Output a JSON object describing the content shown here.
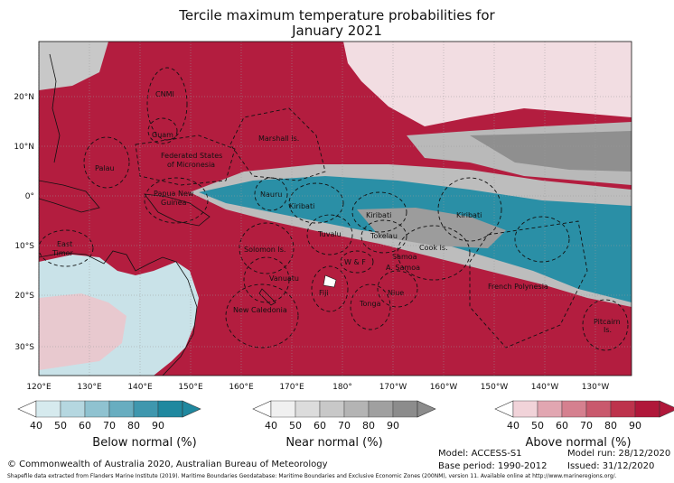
{
  "title": {
    "line1": "Tercile maximum temperature probabilities for",
    "line2": "January 2021"
  },
  "map": {
    "lon_ticks": [
      "120°E",
      "130°E",
      "140°E",
      "150°E",
      "160°E",
      "170°E",
      "180°",
      "170°W",
      "160°W",
      "150°W",
      "140°W",
      "130°W"
    ],
    "lat_ticks": [
      "20°N",
      "10°N",
      "0°",
      "10°S",
      "20°S",
      "30°S"
    ],
    "regions": [
      "CNMI",
      "Guam",
      "Marshall Is.",
      "Federated States",
      "of Micronesia",
      "Palau",
      "Papua New",
      "Guinea",
      "Nauru",
      "Kiribati",
      "Kiribati",
      "Kiribati",
      "Tuvalu",
      "Tokelau",
      "Solomon Is.",
      "East",
      "Timor",
      "Vanuatu",
      "Samoa",
      "W & F",
      "A. Samoa",
      "Cook Is.",
      "Fiji",
      "Niue",
      "Tonga",
      "New Caledonia",
      "French Polynesia",
      "Pitcairn",
      "Is."
    ]
  },
  "colorbars": [
    {
      "name": "below",
      "label": "Below normal (%)",
      "ticks": [
        "40",
        "50",
        "60",
        "70",
        "80",
        "90"
      ],
      "colors": [
        "#d6eaee",
        "#b5d7e0",
        "#8fc2d0",
        "#68adc0",
        "#3f97ae",
        "#1f889f"
      ]
    },
    {
      "name": "near",
      "label": "Near normal (%)",
      "ticks": [
        "40",
        "50",
        "60",
        "70",
        "80",
        "90"
      ],
      "colors": [
        "#f0f0f0",
        "#dcdcdc",
        "#c8c8c8",
        "#b4b4b4",
        "#a0a0a0",
        "#8c8c8c"
      ]
    },
    {
      "name": "above",
      "label": "Above normal (%)",
      "ticks": [
        "40",
        "50",
        "60",
        "70",
        "80",
        "90"
      ],
      "colors": [
        "#f1d3d9",
        "#e1a6b1",
        "#d5808f",
        "#c9596d",
        "#bd334c",
        "#b0173a"
      ]
    }
  ],
  "footer": {
    "copyright": "© Commonwealth of Australia 2020, Australian Bureau of Meteorology",
    "model": "Model: ACCESS-S1",
    "base_period": "Base period: 1990-2012",
    "model_run": "Model run: 28/12/2020",
    "issued": "Issued: 31/12/2020",
    "shapefile_note": "Shapefile data extracted from Flanders Marine Institute (2019). Maritime Boundaries Geodatabase: Maritime Boundaries and Exclusive Economic Zones (200NM), version 11. Available online at http://www.marineregions.org/."
  }
}
